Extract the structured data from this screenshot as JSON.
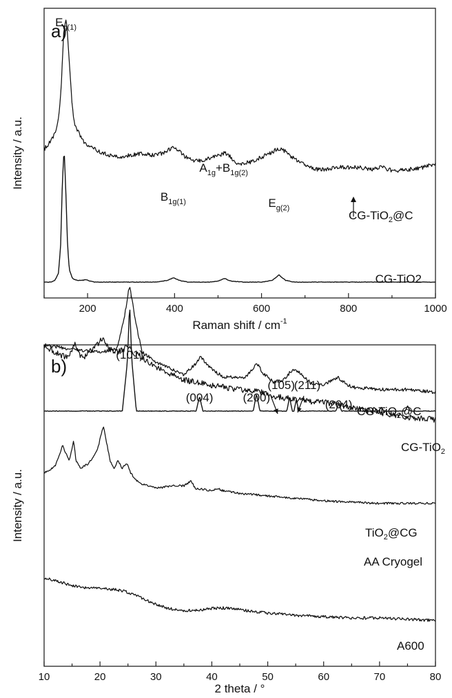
{
  "chart_data": [
    {
      "id": "panel-a",
      "type": "line",
      "panel_label": "a)",
      "xlabel": "Raman shift / cm",
      "xlabel_sup": "-1",
      "ylabel": "Intensity / a.u.",
      "xlim": [
        100,
        1000
      ],
      "xticks": [
        200,
        400,
        600,
        800,
        1000
      ],
      "y_values_shown": false,
      "grid": false,
      "series": [
        {
          "name": "CG-TiO2@C",
          "label_text": "CG-TiO",
          "label_sub": "2",
          "label_rest": "@C",
          "x": [
            100,
            115,
            125,
            135,
            140,
            145,
            150,
            155,
            160,
            165,
            170,
            180,
            190,
            200,
            225,
            250,
            275,
            300,
            325,
            350,
            375,
            390,
            400,
            410,
            425,
            450,
            475,
            490,
            505,
            515,
            525,
            540,
            560,
            580,
            600,
            620,
            635,
            645,
            655,
            670,
            700,
            725,
            750,
            775,
            800,
            825,
            850,
            875,
            890,
            905,
            925,
            950,
            975,
            1000
          ],
          "y": [
            0.34,
            0.38,
            0.42,
            0.52,
            0.68,
            0.92,
            1.0,
            0.88,
            0.7,
            0.55,
            0.47,
            0.42,
            0.38,
            0.36,
            0.33,
            0.31,
            0.3,
            0.31,
            0.32,
            0.31,
            0.32,
            0.34,
            0.35,
            0.33,
            0.3,
            0.28,
            0.29,
            0.3,
            0.31,
            0.32,
            0.31,
            0.27,
            0.27,
            0.28,
            0.3,
            0.32,
            0.34,
            0.34,
            0.33,
            0.3,
            0.26,
            0.24,
            0.24,
            0.25,
            0.25,
            0.25,
            0.24,
            0.25,
            0.24,
            0.23,
            0.24,
            0.24,
            0.25,
            0.27
          ]
        },
        {
          "name": "CG-TiO2",
          "label_text": "CG-TiO2",
          "x": [
            100,
            115,
            125,
            133,
            138,
            142,
            146,
            150,
            154,
            158,
            165,
            175,
            190,
            195,
            200,
            215,
            250,
            300,
            360,
            385,
            398,
            410,
            430,
            480,
            500,
            515,
            530,
            560,
            600,
            625,
            640,
            655,
            675,
            720,
            800,
            900,
            1000
          ],
          "y": [
            0.0,
            0.0,
            0.01,
            0.05,
            0.2,
            0.55,
            0.74,
            0.5,
            0.2,
            0.07,
            0.02,
            0.01,
            0.01,
            0.015,
            0.01,
            0.0,
            0.0,
            0.0,
            0.0,
            0.01,
            0.025,
            0.01,
            0.0,
            0.0,
            0.005,
            0.02,
            0.005,
            0.0,
            0.0,
            0.01,
            0.04,
            0.01,
            0.0,
            0.0,
            0.0,
            0.0,
            0.0
          ]
        }
      ],
      "annotations": [
        {
          "base": "E",
          "sub": "g(1)",
          "x": 150
        },
        {
          "base": "B",
          "sub": "1g(1)",
          "x": 397
        },
        {
          "base": "A",
          "sub": "1g",
          "plus": "+B",
          "sub2": "1g(2)",
          "x": 513,
          "arrow": true
        },
        {
          "base": "E",
          "sub": "g(2)",
          "x": 640
        }
      ]
    },
    {
      "id": "panel-b",
      "type": "line",
      "panel_label": "b)",
      "xlabel": "2 theta / °",
      "ylabel": "Intensity / a.u.",
      "xlim": [
        10,
        80
      ],
      "xticks": [
        10,
        20,
        30,
        40,
        50,
        60,
        70,
        80
      ],
      "y_values_shown": false,
      "grid": false,
      "series": [
        {
          "name": "CG-TiO2@C",
          "label_text": "CG-TiO",
          "label_sub": "2",
          "label_rest": "@C",
          "x": [
            10,
            15,
            20,
            23,
            24.3,
            25.3,
            26.3,
            27.5,
            30,
            35,
            37,
            38,
            39.5,
            42,
            46,
            47.5,
            48,
            49,
            51,
            53,
            54,
            55,
            56,
            58,
            60,
            62.5,
            63.5,
            65,
            70,
            75,
            80
          ],
          "y": [
            0.76,
            0.74,
            0.73,
            0.74,
            0.86,
            1.0,
            0.86,
            0.73,
            0.69,
            0.64,
            0.68,
            0.71,
            0.67,
            0.63,
            0.63,
            0.67,
            0.69,
            0.65,
            0.61,
            0.62,
            0.65,
            0.66,
            0.64,
            0.6,
            0.6,
            0.63,
            0.61,
            0.59,
            0.58,
            0.58,
            0.57
          ]
        },
        {
          "name": "CG-TiO2",
          "label_text": "CG-TiO",
          "label_sub": "2",
          "label_rest": "",
          "x": [
            10,
            20,
            24,
            24.9,
            25.3,
            25.7,
            26.5,
            30,
            37.2,
            37.8,
            38.4,
            47.4,
            48,
            48.6,
            53.4,
            53.9,
            54.4,
            54.7,
            55.1,
            55.6,
            62.2,
            62.7,
            63.2,
            68.6,
            69,
            69.8,
            70.3,
            70.8,
            74.6,
            75,
            75.5,
            80
          ],
          "y": [
            0.5,
            0.5,
            0.5,
            0.7,
            0.93,
            0.7,
            0.5,
            0.5,
            0.5,
            0.56,
            0.5,
            0.5,
            0.57,
            0.5,
            0.5,
            0.555,
            0.5,
            0.5,
            0.545,
            0.5,
            0.5,
            0.53,
            0.5,
            0.5,
            0.515,
            0.5,
            0.515,
            0.5,
            0.5,
            0.52,
            0.5,
            0.5
          ]
        },
        {
          "name": "TiO2@CG",
          "label_text": "TiO",
          "label_sub": "2",
          "label_rest": "@CG",
          "x": [
            10,
            12,
            14,
            15,
            15.5,
            16,
            17,
            18,
            19.5,
            20.5,
            21.5,
            22.5,
            24,
            25,
            26,
            27,
            30,
            35,
            40,
            45,
            48,
            50,
            55,
            60,
            65,
            70,
            75,
            80
          ],
          "y": [
            0.49,
            0.46,
            0.44,
            0.46,
            0.5,
            0.46,
            0.44,
            0.46,
            0.49,
            0.52,
            0.48,
            0.46,
            0.47,
            0.49,
            0.46,
            0.45,
            0.4,
            0.35,
            0.33,
            0.31,
            0.31,
            0.29,
            0.27,
            0.26,
            0.24,
            0.22,
            0.2,
            0.19
          ]
        },
        {
          "name": "AA Cryogel",
          "label_text": "AA Cryogel",
          "x": [
            10,
            12,
            13.3,
            14.5,
            15.3,
            15.7,
            16.5,
            18,
            19.5,
            20.6,
            21.8,
            22.5,
            23.2,
            24,
            24.8,
            25.5,
            27,
            30,
            33,
            35,
            36.3,
            37,
            40,
            41,
            42,
            45,
            50,
            55,
            60,
            70,
            80
          ],
          "y": [
            0.25,
            0.28,
            0.36,
            0.3,
            0.38,
            0.3,
            0.27,
            0.29,
            0.34,
            0.44,
            0.3,
            0.27,
            0.3,
            0.27,
            0.29,
            0.25,
            0.21,
            0.19,
            0.2,
            0.2,
            0.22,
            0.19,
            0.18,
            0.19,
            0.18,
            0.17,
            0.16,
            0.15,
            0.14,
            0.13,
            0.13
          ]
        },
        {
          "name": "A600",
          "label_text": "A600",
          "x": [
            10,
            12,
            15,
            18,
            20,
            22,
            24,
            26,
            28,
            30,
            32,
            34,
            36,
            38,
            40,
            42,
            44,
            46,
            50,
            55,
            60,
            65,
            70,
            75,
            80
          ],
          "y": [
            0.16,
            0.15,
            0.13,
            0.12,
            0.12,
            0.115,
            0.11,
            0.095,
            0.075,
            0.055,
            0.04,
            0.03,
            0.03,
            0.033,
            0.038,
            0.04,
            0.037,
            0.03,
            0.02,
            0.01,
            0.005,
            0.0,
            0.0,
            -0.005,
            -0.01
          ]
        }
      ],
      "annotations": [
        {
          "text": "(101)",
          "x": 25.3
        },
        {
          "text": "(004)",
          "x": 37.8
        },
        {
          "text": "(200)",
          "x": 48.0
        },
        {
          "text": "(105)",
          "x": 53.9,
          "arrow": true
        },
        {
          "text": "(211)",
          "x": 55.1,
          "arrow": true
        },
        {
          "text": "(204)",
          "x": 62.7
        }
      ]
    }
  ]
}
